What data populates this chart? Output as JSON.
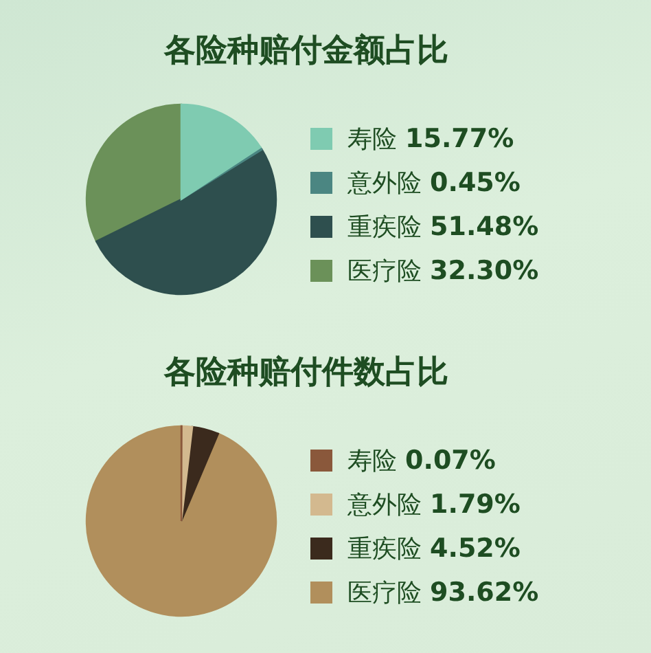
{
  "chart_data": [
    {
      "type": "pie",
      "title": "各险种赔付金额占比",
      "categories": [
        "寿险",
        "意外险",
        "重疾险",
        "医疗险"
      ],
      "values": [
        15.77,
        0.45,
        51.48,
        32.3
      ],
      "colors": [
        "#7fcbb1",
        "#4b8682",
        "#2e4f4e",
        "#6b9159"
      ],
      "value_labels": [
        "15.77%",
        "0.45%",
        "51.48%",
        "32.30%"
      ],
      "legend": "right"
    },
    {
      "type": "pie",
      "title": "各险种赔付件数占比",
      "categories": [
        "寿险",
        "意外险",
        "重疾险",
        "医疗险"
      ],
      "values": [
        0.07,
        1.79,
        4.52,
        93.62
      ],
      "colors": [
        "#8a583b",
        "#d3b98f",
        "#3b2a1d",
        "#b18f5c"
      ],
      "value_labels": [
        "0.07%",
        "1.79%",
        "4.52%",
        "93.62%"
      ],
      "legend": "right"
    }
  ]
}
